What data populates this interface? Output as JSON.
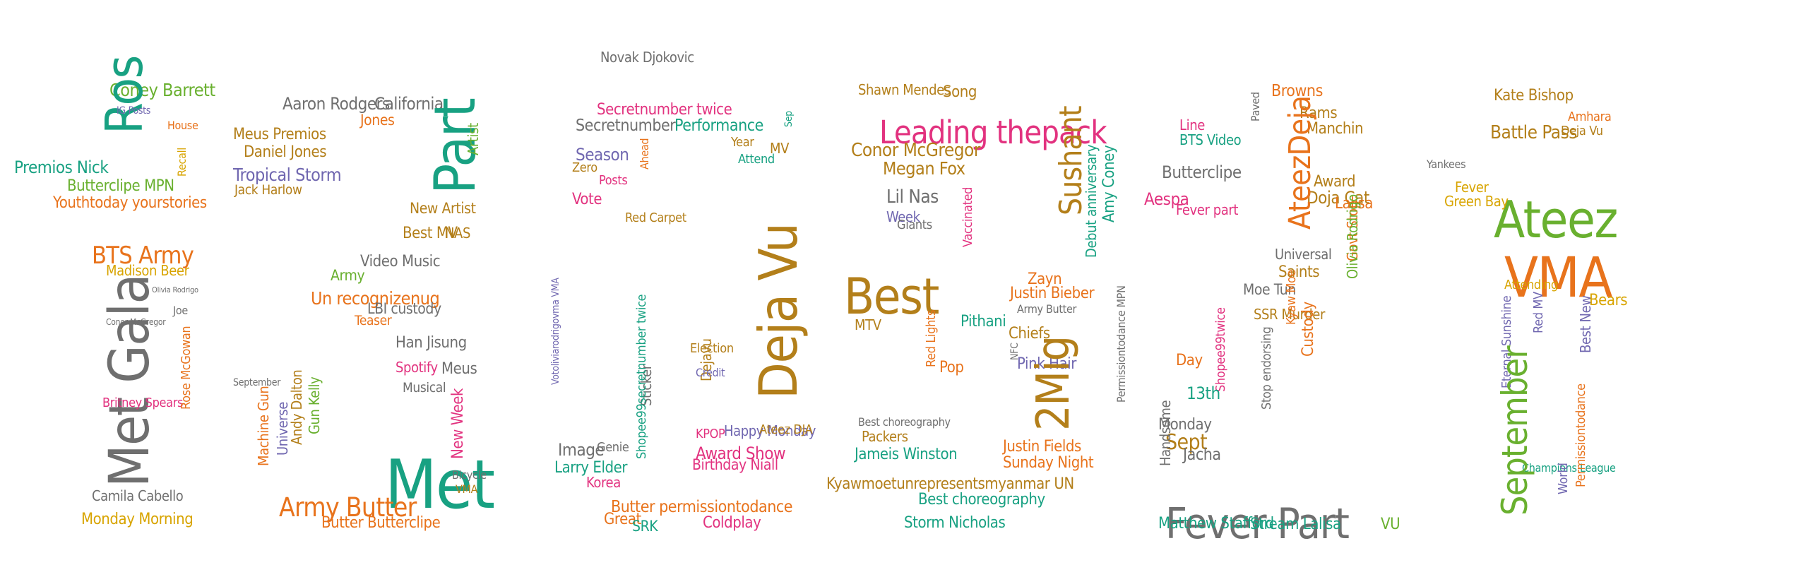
{
  "colors": {
    "orange": "#e8731c",
    "teal": "#18a182",
    "magenta": "#e2327f",
    "green": "#69b02f",
    "purple": "#7067b0",
    "gold": "#b37f1a",
    "gray": "#6f6f6f",
    "mustard": "#d8a400"
  },
  "words": [
    {
      "text": "Coney Barrett",
      "color": "green"
    },
    {
      "text": "Ros",
      "color": "teal"
    },
    {
      "text": "Premios Nick",
      "color": "teal"
    },
    {
      "text": "Butterclipe MPN",
      "color": "green"
    },
    {
      "text": "Youthtoday yourstories",
      "color": "orange"
    },
    {
      "text": "BTS Army",
      "color": "orange"
    },
    {
      "text": "Madison Beer",
      "color": "mustard"
    },
    {
      "text": "Met Gala",
      "color": "gray"
    },
    {
      "text": "Recall",
      "color": "mustard"
    },
    {
      "text": "House",
      "color": "orange"
    },
    {
      "text": "Conor McGregor",
      "color": "gray"
    },
    {
      "text": "Britney Spears",
      "color": "magenta"
    },
    {
      "text": "Camila Cabello",
      "color": "gray"
    },
    {
      "text": "Monday Morning",
      "color": "mustard"
    },
    {
      "text": "Rose McGowan",
      "color": "orange"
    },
    {
      "text": "Olivia Rodrigo",
      "color": "gray"
    },
    {
      "text": "Joe",
      "color": "gray"
    },
    {
      "text": "IG Posts",
      "color": "purple"
    },
    {
      "text": "Aaron Rodgers",
      "color": "gray"
    },
    {
      "text": "California",
      "color": "gray"
    },
    {
      "text": "Meus Premios",
      "color": "gold"
    },
    {
      "text": "Daniel Jones",
      "color": "gold"
    },
    {
      "text": "Tropical Storm",
      "color": "purple"
    },
    {
      "text": "Jack Harlow",
      "color": "gold"
    },
    {
      "text": "Part",
      "color": "teal"
    },
    {
      "text": "Jones",
      "color": "orange"
    },
    {
      "text": "New Artist",
      "color": "gold"
    },
    {
      "text": "Best MV",
      "color": "gold"
    },
    {
      "text": "NAS",
      "color": "gold"
    },
    {
      "text": "Video Music",
      "color": "gray"
    },
    {
      "text": "Army",
      "color": "green"
    },
    {
      "text": "Un recognizenug",
      "color": "orange"
    },
    {
      "text": "LBI custody",
      "color": "gray"
    },
    {
      "text": "Teaser",
      "color": "orange"
    },
    {
      "text": "Han Jisung",
      "color": "gray"
    },
    {
      "text": "Spotify",
      "color": "magenta"
    },
    {
      "text": "Meus",
      "color": "gray"
    },
    {
      "text": "Musical",
      "color": "gray"
    },
    {
      "text": "Met",
      "color": "teal"
    },
    {
      "text": "New Week",
      "color": "magenta"
    },
    {
      "text": "Machine Gun",
      "color": "orange"
    },
    {
      "text": "Universe",
      "color": "purple"
    },
    {
      "text": "Andy Dalton",
      "color": "gold"
    },
    {
      "text": "Gun Kelly",
      "color": "green"
    },
    {
      "text": "September",
      "color": "gray"
    },
    {
      "text": "Army Butter",
      "color": "orange"
    },
    {
      "text": "Butter Butterclipe",
      "color": "orange"
    },
    {
      "text": "Bicycle",
      "color": "gray"
    },
    {
      "text": "VMA",
      "color": "gold"
    },
    {
      "text": "Artist",
      "color": "green"
    },
    {
      "text": "Novak Djokovic",
      "color": "gray"
    },
    {
      "text": "Secretnumber twice",
      "color": "magenta"
    },
    {
      "text": "Secretnumber",
      "color": "gray"
    },
    {
      "text": "Performance",
      "color": "teal"
    },
    {
      "text": "Season",
      "color": "purple"
    },
    {
      "text": "Zero",
      "color": "gold"
    },
    {
      "text": "Posts",
      "color": "magenta"
    },
    {
      "text": "Vote",
      "color": "magenta"
    },
    {
      "text": "Red Carpet",
      "color": "gold"
    },
    {
      "text": "Deja Vu",
      "color": "gold"
    },
    {
      "text": "Attend",
      "color": "teal"
    },
    {
      "text": "Year",
      "color": "gold"
    },
    {
      "text": "MV",
      "color": "gold"
    },
    {
      "text": "Sep",
      "color": "teal"
    },
    {
      "text": "Ahead",
      "color": "orange"
    },
    {
      "text": "Genie",
      "color": "gray"
    },
    {
      "text": "Election",
      "color": "gold"
    },
    {
      "text": "Dejavu",
      "color": "gold"
    },
    {
      "text": "Credit",
      "color": "purple"
    },
    {
      "text": "Happy Monday",
      "color": "purple"
    },
    {
      "text": "Birthday Niall",
      "color": "magenta"
    },
    {
      "text": "Award Show",
      "color": "magenta"
    },
    {
      "text": "Image",
      "color": "gray"
    },
    {
      "text": "Larry Elder",
      "color": "teal"
    },
    {
      "text": "Korea",
      "color": "magenta"
    },
    {
      "text": "Butter permissiontodance",
      "color": "orange"
    },
    {
      "text": "Great",
      "color": "orange"
    },
    {
      "text": "SRK",
      "color": "teal"
    },
    {
      "text": "Coldplay",
      "color": "magenta"
    },
    {
      "text": "KPOP",
      "color": "magenta"
    },
    {
      "text": "Ateez DJA",
      "color": "gold"
    },
    {
      "text": "Sticker",
      "color": "gray"
    },
    {
      "text": "Votoliviarodrigovma VMA",
      "color": "purple"
    },
    {
      "text": "Shopee99secretnumber twice",
      "color": "teal"
    },
    {
      "text": "Shawn Mendes",
      "color": "gold"
    },
    {
      "text": "Song",
      "color": "gold"
    },
    {
      "text": "Leading thepack",
      "color": "magenta"
    },
    {
      "text": "Conor McGregor",
      "color": "gold"
    },
    {
      "text": "Megan Fox",
      "color": "gold"
    },
    {
      "text": "Lil Nas",
      "color": "gray"
    },
    {
      "text": "Week",
      "color": "purple"
    },
    {
      "text": "Giants",
      "color": "gray"
    },
    {
      "text": "Best",
      "color": "gold"
    },
    {
      "text": "Vaccinated",
      "color": "magenta"
    },
    {
      "text": "MTV",
      "color": "gold"
    },
    {
      "text": "Red Lights",
      "color": "orange"
    },
    {
      "text": "Pithani",
      "color": "teal"
    },
    {
      "text": "Chiefs",
      "color": "gold"
    },
    {
      "text": "Sushant",
      "color": "gold"
    },
    {
      "text": "Pop",
      "color": "orange"
    },
    {
      "text": "Best choreography",
      "color": "gray"
    },
    {
      "text": "Packers",
      "color": "gold"
    },
    {
      "text": "Jameis Winston",
      "color": "teal"
    },
    {
      "text": "Kyawmoetunrepresentsmyanmar UN",
      "color": "gold"
    },
    {
      "text": "Best choreography",
      "color": "teal"
    },
    {
      "text": "Storm Nicholas",
      "color": "teal"
    },
    {
      "text": "Justin Bieber",
      "color": "orange"
    },
    {
      "text": "Zayn",
      "color": "orange"
    },
    {
      "text": "Pink Hair",
      "color": "purple"
    },
    {
      "text": "Justin Fields",
      "color": "orange"
    },
    {
      "text": "Sunday Night",
      "color": "orange"
    },
    {
      "text": "2Mig",
      "color": "gold"
    },
    {
      "text": "Debut anniversary",
      "color": "teal"
    },
    {
      "text": "Amy Coney",
      "color": "teal"
    },
    {
      "text": "Permissiontodance MPN",
      "color": "gray"
    },
    {
      "text": "Army Butter",
      "color": "gray"
    },
    {
      "text": "NFC",
      "color": "gray"
    },
    {
      "text": "Browns",
      "color": "orange"
    },
    {
      "text": "Rams",
      "color": "gold"
    },
    {
      "text": "Manchin",
      "color": "gold"
    },
    {
      "text": "Line",
      "color": "magenta"
    },
    {
      "text": "BTS Video",
      "color": "teal"
    },
    {
      "text": "Butterclipe",
      "color": "gray"
    },
    {
      "text": "Aespa",
      "color": "magenta"
    },
    {
      "text": "Fever part",
      "color": "magenta"
    },
    {
      "text": "Paved",
      "color": "gray"
    },
    {
      "text": "Doja Cat",
      "color": "gold"
    },
    {
      "text": "Award",
      "color": "gold"
    },
    {
      "text": "Lalisa",
      "color": "orange"
    },
    {
      "text": "AteezDeja",
      "color": "orange"
    },
    {
      "text": "Govt Stop",
      "color": "orange"
    },
    {
      "text": "Universal",
      "color": "gray"
    },
    {
      "text": "Saints",
      "color": "gold"
    },
    {
      "text": "Moe Tun",
      "color": "gray"
    },
    {
      "text": "Olivia Rodrigo",
      "color": "green"
    },
    {
      "text": "SSR Murder",
      "color": "gold"
    },
    {
      "text": "Kyaw Moe",
      "color": "orange"
    },
    {
      "text": "Custody",
      "color": "orange"
    },
    {
      "text": "Day",
      "color": "orange"
    },
    {
      "text": "Shopee99twice",
      "color": "magenta"
    },
    {
      "text": "13th",
      "color": "teal"
    },
    {
      "text": "Stop endorsing",
      "color": "gray"
    },
    {
      "text": "Monday",
      "color": "gray"
    },
    {
      "text": "Sept",
      "color": "gold"
    },
    {
      "text": "Jacha",
      "color": "gray"
    },
    {
      "text": "Fever Part",
      "color": "gray"
    },
    {
      "text": "Handsome",
      "color": "gray"
    },
    {
      "text": "Matthew Stafford",
      "color": "teal"
    },
    {
      "text": "Stream Lalisa",
      "color": "teal"
    },
    {
      "text": "VU",
      "color": "green"
    },
    {
      "text": "Kate Bishop",
      "color": "gold"
    },
    {
      "text": "Amhara",
      "color": "orange"
    },
    {
      "text": "Battle Pass",
      "color": "gold"
    },
    {
      "text": "Deja Vu",
      "color": "gold"
    },
    {
      "text": "Yankees",
      "color": "gray"
    },
    {
      "text": "Ateez",
      "color": "green"
    },
    {
      "text": "Fever",
      "color": "mustard"
    },
    {
      "text": "Green Bay",
      "color": "mustard"
    },
    {
      "text": "VMA",
      "color": "orange"
    },
    {
      "text": "Attending",
      "color": "mustard"
    },
    {
      "text": "Bears",
      "color": "mustard"
    },
    {
      "text": "Eternal Sunshine",
      "color": "purple"
    },
    {
      "text": "Red MV",
      "color": "purple"
    },
    {
      "text": "Best New",
      "color": "purple"
    },
    {
      "text": "Champions League",
      "color": "teal"
    },
    {
      "text": "September",
      "color": "green"
    },
    {
      "text": "Permissiontodance",
      "color": "orange"
    },
    {
      "text": "World",
      "color": "purple"
    }
  ]
}
